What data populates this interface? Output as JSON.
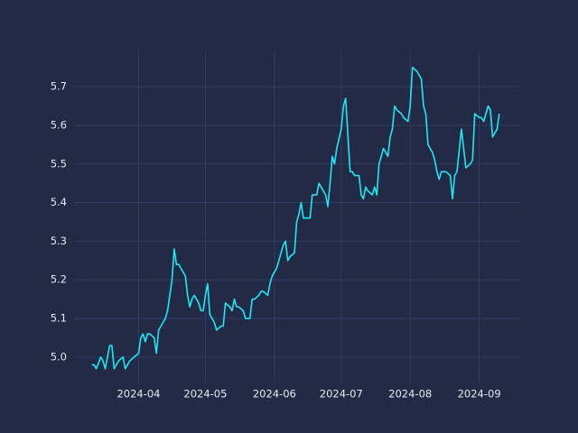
{
  "chart_data": {
    "type": "line",
    "x": [
      70,
      71,
      72,
      74,
      75,
      76,
      78,
      79,
      80,
      82,
      84,
      85,
      86,
      87,
      89,
      91,
      92,
      93,
      94,
      95,
      96,
      98,
      99,
      100,
      102,
      103,
      104,
      106,
      107,
      108,
      109,
      110,
      112,
      113,
      114,
      115,
      116,
      118,
      119,
      120,
      121,
      122,
      123,
      125,
      126,
      128,
      129,
      130,
      132,
      133,
      134,
      135,
      136,
      138,
      139,
      141,
      142,
      143,
      145,
      146,
      147,
      149,
      150,
      151,
      153,
      154,
      156,
      157,
      158,
      159,
      161,
      162,
      163,
      164,
      165,
      167,
      168,
      169,
      171,
      172,
      173,
      175,
      176,
      177,
      178,
      179,
      180,
      182,
      183,
      184,
      186,
      187,
      188,
      190,
      191,
      192,
      193,
      194,
      196,
      197,
      198,
      199,
      201,
      202,
      203,
      204,
      205,
      206,
      207,
      209,
      210,
      212,
      213,
      214,
      216,
      218,
      219,
      220,
      221,
      223,
      224,
      225,
      226,
      227,
      229,
      231,
      232,
      233,
      234,
      236,
      237,
      238,
      240,
      241,
      242,
      244,
      245,
      246,
      248,
      249,
      250,
      251,
      252,
      253
    ],
    "series": [
      {
        "color": "#1fe7f5",
        "values": [
          4.98,
          4.98,
          4.97,
          5.0,
          4.99,
          4.97,
          5.03,
          5.03,
          4.97,
          4.99,
          5.0,
          4.97,
          4.98,
          4.99,
          5.0,
          5.01,
          5.05,
          5.06,
          5.04,
          5.06,
          5.06,
          5.05,
          5.01,
          5.07,
          5.09,
          5.1,
          5.12,
          5.2,
          5.28,
          5.24,
          5.24,
          5.23,
          5.21,
          5.16,
          5.13,
          5.15,
          5.16,
          5.14,
          5.12,
          5.12,
          5.16,
          5.19,
          5.11,
          5.09,
          5.07,
          5.08,
          5.08,
          5.14,
          5.13,
          5.12,
          5.15,
          5.13,
          5.13,
          5.12,
          5.1,
          5.1,
          5.15,
          5.15,
          5.16,
          5.17,
          5.17,
          5.16,
          5.19,
          5.21,
          5.23,
          5.25,
          5.29,
          5.3,
          5.25,
          5.26,
          5.27,
          5.35,
          5.37,
          5.4,
          5.36,
          5.36,
          5.36,
          5.42,
          5.42,
          5.45,
          5.44,
          5.42,
          5.39,
          5.45,
          5.52,
          5.5,
          5.54,
          5.59,
          5.65,
          5.67,
          5.48,
          5.48,
          5.47,
          5.47,
          5.42,
          5.41,
          5.44,
          5.43,
          5.42,
          5.44,
          5.42,
          5.5,
          5.54,
          5.53,
          5.52,
          5.57,
          5.59,
          5.65,
          5.64,
          5.63,
          5.62,
          5.61,
          5.65,
          5.75,
          5.74,
          5.72,
          5.65,
          5.63,
          5.55,
          5.53,
          5.51,
          5.48,
          5.46,
          5.48,
          5.48,
          5.47,
          5.41,
          5.47,
          5.48,
          5.59,
          5.54,
          5.49,
          5.5,
          5.51,
          5.63,
          5.62,
          5.62,
          5.61,
          5.65,
          5.64,
          5.57,
          5.58,
          5.59,
          5.63
        ]
      }
    ],
    "xlim": [
      62,
      262
    ],
    "xticks": [
      {
        "value": 91,
        "label": "2024-04"
      },
      {
        "value": 121,
        "label": "2024-05"
      },
      {
        "value": 152,
        "label": "2024-06"
      },
      {
        "value": 182,
        "label": "2024-07"
      },
      {
        "value": 213,
        "label": "2024-08"
      },
      {
        "value": 244,
        "label": "2024-09"
      }
    ],
    "ylim": [
      4.932,
      5.789
    ],
    "yticks": [
      {
        "value": 5,
        "label": "5.0"
      },
      5.1,
      5.2,
      5.3,
      5.4,
      5.5,
      5.6,
      5.7
    ],
    "grid": true
  }
}
